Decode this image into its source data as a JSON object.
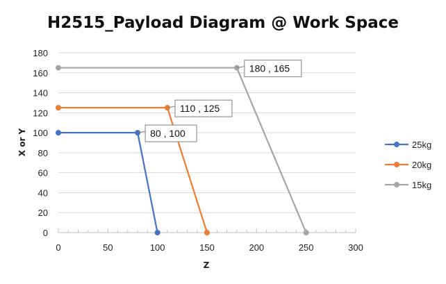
{
  "chart_data": {
    "type": "line",
    "title": "H2515_Payload Diagram @ Work Space",
    "xlabel": "Z",
    "ylabel": "X or Y",
    "xlim": [
      0,
      300
    ],
    "ylim": [
      0,
      180
    ],
    "x_ticks": [
      0,
      50,
      100,
      150,
      200,
      250,
      300
    ],
    "y_ticks": [
      0,
      20,
      40,
      60,
      80,
      100,
      120,
      140,
      160,
      180
    ],
    "grid": "horizontal",
    "legend": "right",
    "series": [
      {
        "name": "25kg",
        "color": "#4472C4",
        "x": [
          0,
          80,
          100
        ],
        "y": [
          100,
          100,
          0
        ],
        "callout": {
          "point": 1,
          "text": "80 , 100"
        }
      },
      {
        "name": "20kg",
        "color": "#ED7D31",
        "x": [
          0,
          110,
          150
        ],
        "y": [
          125,
          125,
          0
        ],
        "callout": {
          "point": 1,
          "text": "110 , 125"
        }
      },
      {
        "name": "15kg",
        "color": "#A5A5A5",
        "x": [
          0,
          180,
          250
        ],
        "y": [
          165,
          165,
          0
        ],
        "callout": {
          "point": 1,
          "text": "180 , 165"
        }
      }
    ]
  }
}
